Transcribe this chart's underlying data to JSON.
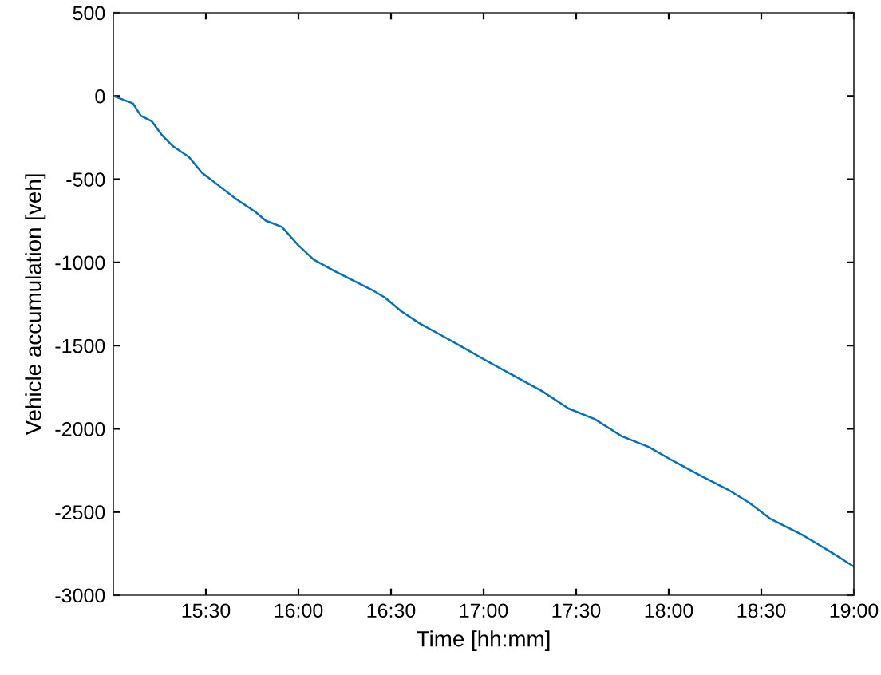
{
  "chart_data": {
    "type": "line",
    "xlabel": "Time [hh:mm]",
    "ylabel": "Vehicle accumulation [veh]",
    "x": [
      15.0,
      15.106,
      15.149,
      15.207,
      15.264,
      15.321,
      15.407,
      15.479,
      15.579,
      15.665,
      15.766,
      15.823,
      15.91,
      15.996,
      16.082,
      16.196,
      16.311,
      16.397,
      16.469,
      16.555,
      16.655,
      16.77,
      16.885,
      16.999,
      17.171,
      17.315,
      17.459,
      17.601,
      17.745,
      17.889,
      18.032,
      18.176,
      18.319,
      18.434,
      18.548,
      18.72,
      18.864,
      19.0
    ],
    "series": [
      {
        "color": "#0072bd",
        "values": [
          0,
          -45,
          -119,
          -151,
          -237,
          -301,
          -365,
          -461,
          -547,
          -621,
          -695,
          -749,
          -787,
          -893,
          -983,
          -1053,
          -1117,
          -1165,
          -1213,
          -1293,
          -1367,
          -1437,
          -1508,
          -1581,
          -1686,
          -1773,
          -1878,
          -1942,
          -2044,
          -2108,
          -2198,
          -2284,
          -2365,
          -2444,
          -2540,
          -2636,
          -2732,
          -2828
        ]
      }
    ],
    "xlim": [
      15.0,
      19.0
    ],
    "xticks": [
      {
        "value": 15.5,
        "label": "15:30"
      },
      {
        "value": 16.0,
        "label": "16:00"
      },
      {
        "value": 16.5,
        "label": "16:30"
      },
      {
        "value": 17.0,
        "label": "17:00"
      },
      {
        "value": 17.5,
        "label": "17:30"
      },
      {
        "value": 18.0,
        "label": "18:00"
      },
      {
        "value": 18.5,
        "label": "18:30"
      },
      {
        "value": 19.0,
        "label": "19:00"
      }
    ],
    "ylim": [
      -3000,
      500
    ],
    "yticks": [
      -3000,
      -2500,
      -2000,
      -1500,
      -1000,
      -500,
      0,
      500
    ],
    "grid": false,
    "marker": "none",
    "line_style": "solid"
  }
}
